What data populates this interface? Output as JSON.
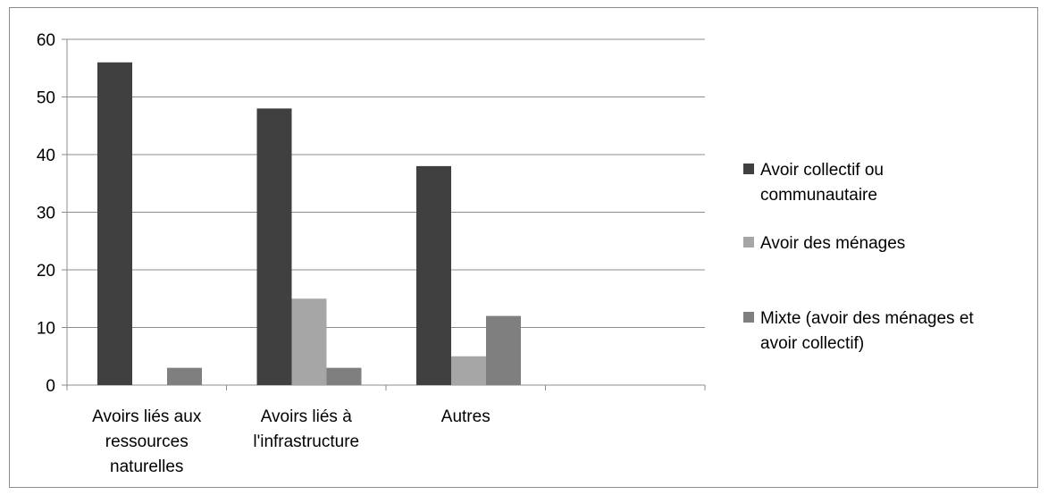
{
  "chart_data": {
    "type": "bar",
    "categories": [
      [
        "Avoirs liés aux",
        "ressources",
        "naturelles"
      ],
      [
        "Avoirs liés à",
        "l'infrastructure"
      ],
      [
        "Autres"
      ],
      [
        ""
      ]
    ],
    "series": [
      {
        "name": [
          "Avoir collectif ou",
          "communautaire"
        ],
        "color": "#404040",
        "values": [
          56,
          48,
          38,
          null
        ]
      },
      {
        "name": [
          "Avoir des ménages"
        ],
        "color": "#a6a6a6",
        "values": [
          0,
          15,
          5,
          null
        ]
      },
      {
        "name": [
          "Mixte (avoir des ménages et",
          "avoir collectif)"
        ],
        "color": "#7f7f7f",
        "values": [
          3,
          3,
          12,
          null
        ]
      }
    ],
    "ylim": [
      0,
      60
    ],
    "yticks": [
      0,
      10,
      20,
      30,
      40,
      50,
      60
    ],
    "grid": true,
    "legend_position": "right",
    "title": "",
    "xlabel": "",
    "ylabel": ""
  }
}
